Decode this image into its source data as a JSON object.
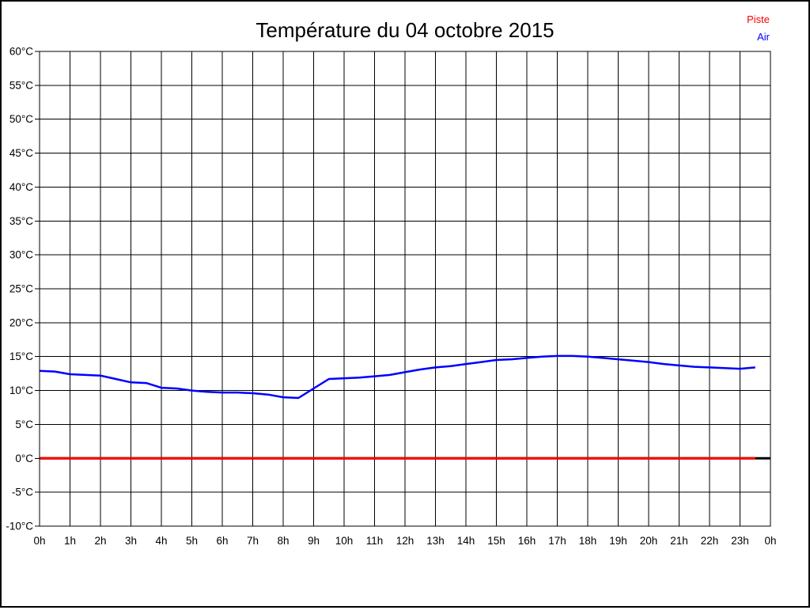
{
  "header": {
    "title": "Température du 04 octobre 2015"
  },
  "legend": {
    "position": "top-right",
    "items": [
      {
        "label": "Piste",
        "color": "#ff0000"
      },
      {
        "label": "Air",
        "color": "#0000ff"
      }
    ]
  },
  "chart_data": {
    "type": "line",
    "title": "Température du 04 octobre 2015",
    "xlabel": "",
    "ylabel": "",
    "x_unit": "hours",
    "xlim": [
      0,
      24
    ],
    "ylim": [
      -10,
      60
    ],
    "x_tick_step": 1,
    "y_tick_step": 5,
    "grid": true,
    "grid_color": "#000000",
    "x_tick_labels": [
      "0h",
      "1h",
      "2h",
      "3h",
      "4h",
      "5h",
      "6h",
      "7h",
      "8h",
      "9h",
      "10h",
      "11h",
      "12h",
      "13h",
      "14h",
      "15h",
      "16h",
      "17h",
      "18h",
      "19h",
      "20h",
      "21h",
      "22h",
      "23h",
      "0h"
    ],
    "y_tick_labels": [
      "60°C",
      "55°C",
      "50°C",
      "45°C",
      "40°C",
      "35°C",
      "30°C",
      "25°C",
      "20°C",
      "15°C",
      "10°C",
      "5°C",
      "0°C",
      "-5°C",
      "-10°C"
    ],
    "zero_line": {
      "value": 0,
      "color": "#000000",
      "width": 3
    },
    "series": [
      {
        "name": "Piste",
        "color": "#ff0000",
        "width": 3,
        "x": [
          0,
          23.5
        ],
        "values": [
          0,
          0
        ]
      },
      {
        "name": "Air",
        "color": "#0000ff",
        "width": 2.5,
        "x": [
          0,
          0.5,
          1,
          1.5,
          2,
          2.5,
          3,
          3.5,
          4,
          4.5,
          5,
          5.5,
          6,
          6.5,
          7,
          7.5,
          8,
          8.5,
          9,
          9.5,
          10,
          10.5,
          11,
          11.5,
          12,
          12.5,
          13,
          13.5,
          14,
          14.5,
          15,
          15.5,
          16,
          16.5,
          17,
          17.5,
          18,
          18.5,
          19,
          19.5,
          20,
          20.5,
          21,
          21.5,
          22,
          22.5,
          23,
          23.5
        ],
        "values": [
          12.9,
          12.8,
          12.4,
          12.3,
          12.2,
          11.7,
          11.2,
          11.1,
          10.4,
          10.3,
          10.0,
          9.8,
          9.7,
          9.7,
          9.6,
          9.4,
          9.0,
          8.9,
          10.3,
          11.7,
          11.8,
          11.9,
          12.1,
          12.3,
          12.7,
          13.1,
          13.4,
          13.6,
          13.9,
          14.2,
          14.5,
          14.6,
          14.8,
          15.0,
          15.1,
          15.1,
          15.0,
          14.8,
          14.6,
          14.4,
          14.2,
          13.9,
          13.7,
          13.5,
          13.4,
          13.3,
          13.2,
          13.4
        ]
      }
    ]
  }
}
